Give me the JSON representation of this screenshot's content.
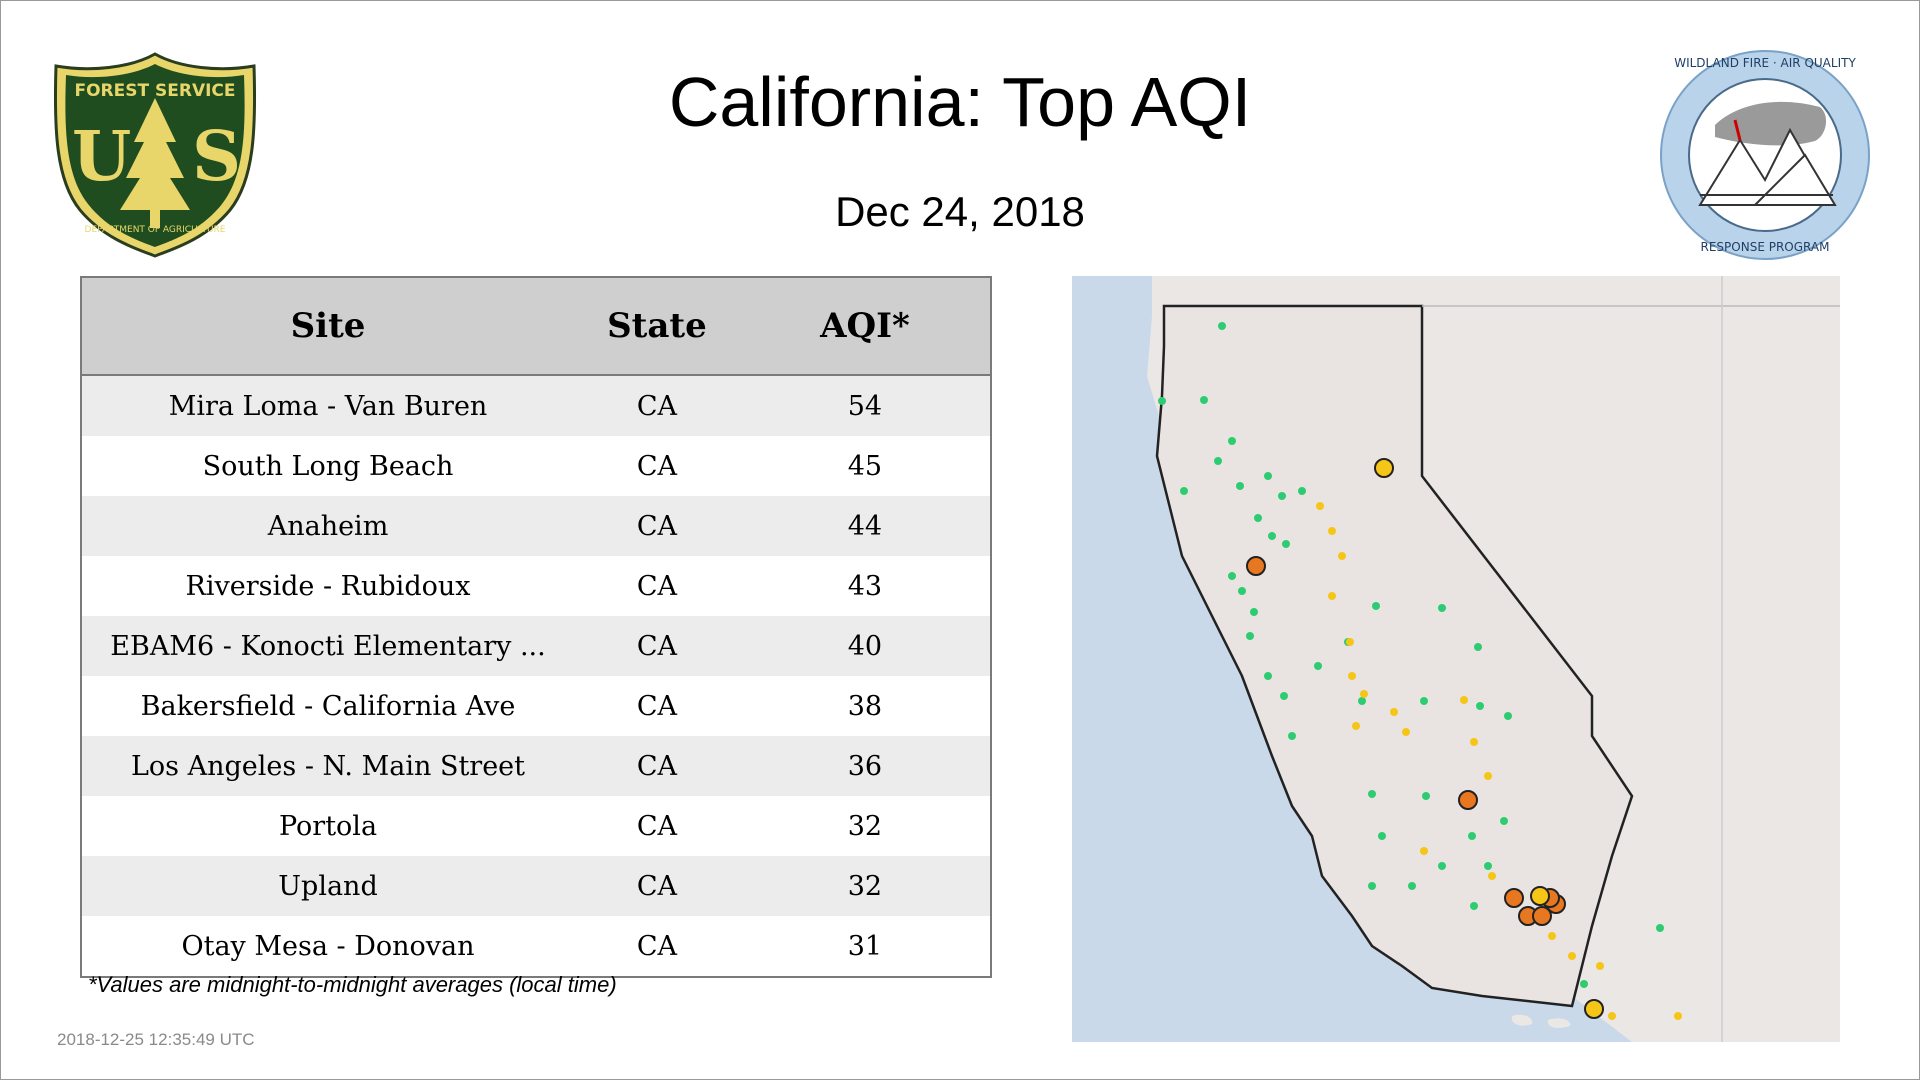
{
  "title": "California: Top AQI",
  "date": "Dec 24, 2018",
  "logos": {
    "usfs": {
      "top_text": "FOREST SERVICE",
      "letters": "U S",
      "bottom_text": "DEPARTMENT OF AGRICULTURE"
    },
    "wfaq": {
      "top_text": "WILDLAND FIRE · AIR QUALITY",
      "bottom_text": "RESPONSE PROGRAM"
    }
  },
  "table": {
    "headers": {
      "site": "Site",
      "state": "State",
      "aqi": "AQI*"
    },
    "rows": [
      {
        "site": "Mira Loma - Van Buren",
        "state": "CA",
        "aqi": "54"
      },
      {
        "site": "South Long Beach",
        "state": "CA",
        "aqi": "45"
      },
      {
        "site": "Anaheim",
        "state": "CA",
        "aqi": "44"
      },
      {
        "site": "Riverside - Rubidoux",
        "state": "CA",
        "aqi": "43"
      },
      {
        "site": "EBAM6 - Konocti Elementary ...",
        "state": "CA",
        "aqi": "40"
      },
      {
        "site": "Bakersfield - California Ave",
        "state": "CA",
        "aqi": "38"
      },
      {
        "site": "Los Angeles - N. Main Street",
        "state": "CA",
        "aqi": "36"
      },
      {
        "site": "Portola",
        "state": "CA",
        "aqi": "32"
      },
      {
        "site": "Upland",
        "state": "CA",
        "aqi": "32"
      },
      {
        "site": "Otay Mesa - Donovan",
        "state": "CA",
        "aqi": "31"
      }
    ]
  },
  "footnote": "*Values are midnight-to-midnight averages (local time)",
  "timestamp": "2018-12-25 12:35:49 UTC",
  "colors": {
    "good": "#2ecc71",
    "moderate": "#f5c518",
    "usg": "#e87722",
    "ocean": "#c9d9ea",
    "land": "#ece8e6"
  }
}
